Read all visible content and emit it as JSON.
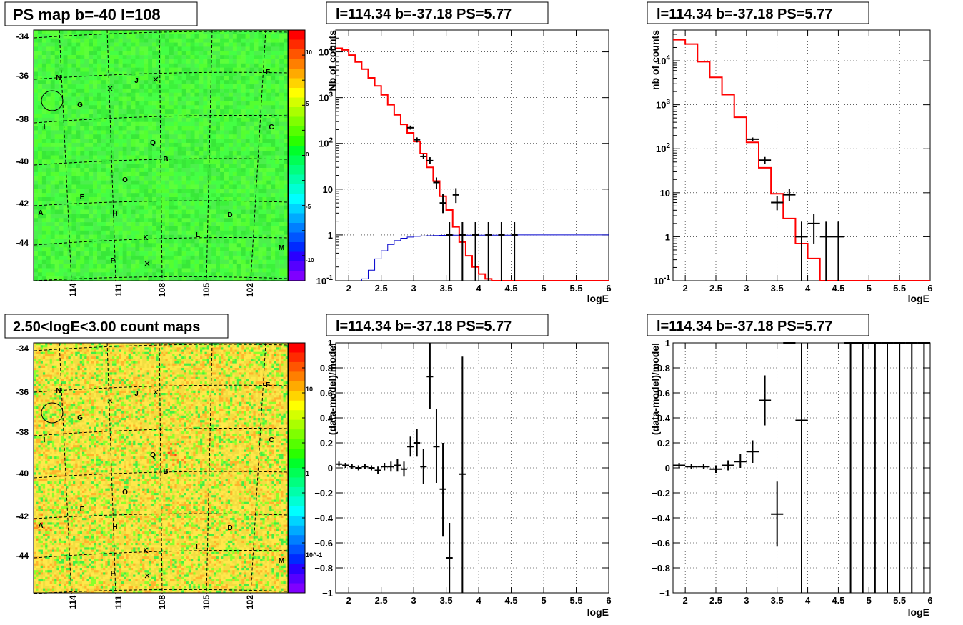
{
  "colors": {
    "model": "#ff0000",
    "acceptance": "#0000cc",
    "data": "#000000",
    "grid": "#000000"
  },
  "panels": {
    "ps_map": {
      "title": "PS map b=-40 l=108",
      "y_ticks": [
        "-34",
        "-36",
        "-38",
        "-40",
        "-42",
        "-44"
      ],
      "x_ticks": [
        "114",
        "111",
        "108",
        "105",
        "102"
      ],
      "colorbar_ticks": [
        "10",
        "5",
        "0",
        "-5",
        "-10"
      ],
      "sources": [
        "N",
        "J",
        "F",
        "G",
        "I",
        "C",
        "Q",
        "B",
        "O",
        "E",
        "A",
        "H",
        "D",
        "K",
        "L",
        "M",
        "P"
      ]
    },
    "count_map": {
      "title": "2.50<logE<3.00 count maps",
      "y_ticks": [
        "-34",
        "-36",
        "-38",
        "-40",
        "-42",
        "-44"
      ],
      "x_ticks": [
        "114",
        "111",
        "108",
        "105",
        "102"
      ],
      "colorbar_ticks": [
        "10",
        "1",
        "10^-1"
      ],
      "sources": [
        "N",
        "J",
        "F",
        "G",
        "I",
        "C",
        "Q",
        "B",
        "O",
        "E",
        "A",
        "H",
        "D",
        "K",
        "L",
        "M",
        "P"
      ]
    },
    "spec1": {
      "title": "l=114.34 b=-37.18 PS=5.77",
      "xlabel": "logE",
      "ylabel": "Nb of counts"
    },
    "spec2": {
      "title": "l=114.34 b=-37.18 PS=5.77",
      "xlabel": "logE",
      "ylabel": "nb of counts"
    },
    "res1": {
      "title": "l=114.34 b=-37.18 PS=5.77",
      "xlabel": "logE",
      "ylabel": "(data-model)/model"
    },
    "res2": {
      "title": "l=114.34 b=-37.18 PS=5.77",
      "xlabel": "logE",
      "ylabel": "(data-model)/model"
    }
  },
  "chart_data": [
    {
      "type": "heatmap",
      "title": "PS map b=-40 l=108",
      "xlim": [
        116,
        100
      ],
      "ylim": [
        -45.8,
        -33.6
      ],
      "colorbar_range": [
        -12,
        12
      ],
      "grid": true
    },
    {
      "type": "line",
      "title": "l=114.34 b=-37.18 PS=5.77",
      "xlabel": "logE",
      "ylabel": "Nb of counts",
      "xlim": [
        1.8,
        6
      ],
      "ylim": [
        0.1,
        30000
      ],
      "yscale": "log",
      "x_ticks": [
        2,
        2.5,
        3,
        3.5,
        4,
        4.5,
        5,
        5.5,
        6
      ],
      "x_tick_labels": [
        "2",
        "2.5",
        "3",
        "3.5",
        "4",
        "4.5",
        "5",
        "5.5",
        "6"
      ],
      "y_ticks": [
        0.1,
        1,
        10,
        100,
        1000,
        10000
      ],
      "y_tick_labels": [
        "10^-1",
        "1",
        "10",
        "10^2",
        "10^3",
        "10^4"
      ],
      "grid": true,
      "model_edges": [
        1.8,
        1.9,
        2.0,
        2.1,
        2.2,
        2.3,
        2.4,
        2.5,
        2.6,
        2.7,
        2.8,
        2.9,
        3.0,
        3.1,
        3.2,
        3.3,
        3.4,
        3.5,
        3.6,
        3.7,
        3.8,
        3.9,
        4.0,
        4.1,
        4.2,
        6.0
      ],
      "model_values": [
        12000,
        11000,
        8500,
        6000,
        4200,
        2700,
        1800,
        1150,
        700,
        420,
        260,
        170,
        110,
        60,
        30,
        15,
        7,
        3.5,
        1.5,
        0.7,
        0.35,
        0.2,
        0.14,
        0.11,
        0.1
      ],
      "acceptance_edges": [
        2.2,
        2.3,
        2.4,
        2.5,
        2.6,
        2.7,
        2.8,
        2.9,
        3.0,
        3.1,
        3.2,
        3.3,
        3.4,
        3.6,
        4.6,
        6.0
      ],
      "acceptance_values": [
        0.11,
        0.17,
        0.3,
        0.45,
        0.62,
        0.75,
        0.85,
        0.9,
        0.93,
        0.95,
        0.96,
        0.97,
        0.98,
        0.99,
        1.0
      ],
      "data_points": [
        {
          "x": 2.95,
          "y": 220,
          "lo": 200,
          "hi": 245,
          "w": 0.05
        },
        {
          "x": 3.05,
          "y": 120,
          "lo": 105,
          "hi": 135,
          "w": 0.05
        },
        {
          "x": 3.15,
          "y": 52,
          "lo": 45,
          "hi": 60,
          "w": 0.05
        },
        {
          "x": 3.25,
          "y": 42,
          "lo": 35,
          "hi": 50,
          "w": 0.05
        },
        {
          "x": 3.35,
          "y": 14,
          "lo": 10,
          "hi": 18,
          "w": 0.05
        },
        {
          "x": 3.45,
          "y": 5,
          "lo": 3,
          "hi": 8,
          "w": 0.05
        },
        {
          "x": 3.65,
          "y": 7.5,
          "lo": 5,
          "hi": 10.5,
          "w": 0.05
        },
        {
          "x": 3.55,
          "y": 1,
          "lo": 0.1,
          "hi": 1.9,
          "w": 0.05
        },
        {
          "x": 3.75,
          "y": 1,
          "lo": 0.1,
          "hi": 1.9,
          "w": 0.05
        },
        {
          "x": 3.95,
          "y": 1,
          "lo": 0.1,
          "hi": 1.9,
          "w": 0.05
        },
        {
          "x": 4.15,
          "y": 1,
          "lo": 0.1,
          "hi": 1.9,
          "w": 0.05
        },
        {
          "x": 4.35,
          "y": 1,
          "lo": 0.1,
          "hi": 1.9,
          "w": 0.05
        },
        {
          "x": 4.55,
          "y": 1,
          "lo": 0.1,
          "hi": 1.9,
          "w": 0.05
        }
      ]
    },
    {
      "type": "line",
      "title": "l=114.34 b=-37.18 PS=5.77",
      "xlabel": "logE",
      "ylabel": "nb of counts",
      "xlim": [
        1.8,
        6
      ],
      "ylim": [
        0.1,
        50000
      ],
      "yscale": "log",
      "x_ticks": [
        2,
        2.5,
        3,
        3.5,
        4,
        4.5,
        5,
        5.5,
        6
      ],
      "x_tick_labels": [
        "2",
        "2.5",
        "3",
        "3.5",
        "4",
        "4.5",
        "5",
        "5.5",
        "6"
      ],
      "y_ticks": [
        0.1,
        1,
        10,
        100,
        1000,
        10000
      ],
      "y_tick_labels": [
        "10^-1",
        "1",
        "10",
        "10^2",
        "10^3",
        "10^4"
      ],
      "grid": true,
      "model_edges": [
        1.8,
        2.0,
        2.2,
        2.4,
        2.6,
        2.8,
        3.0,
        3.2,
        3.4,
        3.6,
        3.8,
        4.0,
        4.2,
        4.4,
        6.0
      ],
      "model_values": [
        30000,
        24000,
        9500,
        4200,
        1700,
        520,
        140,
        37,
        9.5,
        2.6,
        0.7,
        0.32,
        0.1,
        0.1
      ],
      "data_points": [
        {
          "x": 3.1,
          "y": 165,
          "lo": 150,
          "hi": 180,
          "w": 0.1
        },
        {
          "x": 3.3,
          "y": 55,
          "lo": 45,
          "hi": 65,
          "w": 0.1
        },
        {
          "x": 3.5,
          "y": 6,
          "lo": 4,
          "hi": 8.5,
          "w": 0.1
        },
        {
          "x": 3.7,
          "y": 9,
          "lo": 6.5,
          "hi": 12,
          "w": 0.1
        },
        {
          "x": 3.9,
          "y": 1,
          "lo": 0.1,
          "hi": 2.2,
          "w": 0.1
        },
        {
          "x": 4.1,
          "y": 2,
          "lo": 0.7,
          "hi": 3.3,
          "w": 0.1
        },
        {
          "x": 4.3,
          "y": 1,
          "lo": 0.1,
          "hi": 2.2,
          "w": 0.1
        },
        {
          "x": 4.5,
          "y": 1,
          "lo": 0.1,
          "hi": 2.2,
          "w": 0.1
        }
      ]
    },
    {
      "type": "heatmap",
      "title": "2.50<logE<3.00 count maps",
      "xlim": [
        116,
        100
      ],
      "ylim": [
        -45.8,
        -33.6
      ],
      "colorbar_scale": "log",
      "grid": true
    },
    {
      "type": "scatter",
      "title": "l=114.34 b=-37.18 PS=5.77",
      "xlabel": "logE",
      "ylabel": "(data-model)/model",
      "xlim": [
        1.8,
        6
      ],
      "ylim": [
        -1,
        1
      ],
      "x_ticks": [
        2,
        2.5,
        3,
        3.5,
        4,
        4.5,
        5,
        5.5,
        6
      ],
      "x_tick_labels": [
        "2",
        "2.5",
        "3",
        "3.5",
        "4",
        "4.5",
        "5",
        "5.5",
        "6"
      ],
      "y_ticks": [
        -1,
        -0.8,
        -0.6,
        -0.4,
        -0.2,
        0,
        0.2,
        0.4,
        0.6,
        0.8,
        1
      ],
      "y_tick_labels": [
        "−1",
        "−0.8",
        "−0.6",
        "−0.4",
        "−0.2",
        "0",
        "0.2",
        "0.4",
        "0.6",
        "0.8",
        "1"
      ],
      "grid": true,
      "data_points": [
        {
          "x": 1.85,
          "y": 0.03,
          "lo": 0.01,
          "hi": 0.05,
          "w": 0.05
        },
        {
          "x": 1.95,
          "y": 0.02,
          "lo": 0.0,
          "hi": 0.04,
          "w": 0.05
        },
        {
          "x": 2.05,
          "y": 0.01,
          "lo": -0.01,
          "hi": 0.03,
          "w": 0.05
        },
        {
          "x": 2.15,
          "y": 0.0,
          "lo": -0.02,
          "hi": 0.02,
          "w": 0.05
        },
        {
          "x": 2.25,
          "y": 0.01,
          "lo": -0.01,
          "hi": 0.03,
          "w": 0.05
        },
        {
          "x": 2.35,
          "y": 0.0,
          "lo": -0.02,
          "hi": 0.02,
          "w": 0.05
        },
        {
          "x": 2.45,
          "y": -0.02,
          "lo": -0.05,
          "hi": 0.01,
          "w": 0.05
        },
        {
          "x": 2.55,
          "y": 0.01,
          "lo": -0.02,
          "hi": 0.04,
          "w": 0.05
        },
        {
          "x": 2.65,
          "y": 0.01,
          "lo": -0.03,
          "hi": 0.05,
          "w": 0.05
        },
        {
          "x": 2.75,
          "y": 0.02,
          "lo": -0.03,
          "hi": 0.07,
          "w": 0.05
        },
        {
          "x": 2.85,
          "y": -0.01,
          "lo": -0.07,
          "hi": 0.05,
          "w": 0.05
        },
        {
          "x": 2.95,
          "y": 0.17,
          "lo": 0.09,
          "hi": 0.25,
          "w": 0.05
        },
        {
          "x": 3.05,
          "y": 0.2,
          "lo": 0.09,
          "hi": 0.31,
          "w": 0.05
        },
        {
          "x": 3.15,
          "y": 0.01,
          "lo": -0.13,
          "hi": 0.15,
          "w": 0.05
        },
        {
          "x": 3.25,
          "y": 0.73,
          "lo": 0.47,
          "hi": 1.0,
          "w": 0.05
        },
        {
          "x": 3.35,
          "y": 0.17,
          "lo": -0.12,
          "hi": 0.47,
          "w": 0.05
        },
        {
          "x": 3.45,
          "y": -0.17,
          "lo": -0.55,
          "hi": 0.2,
          "w": 0.05
        },
        {
          "x": 3.55,
          "y": -0.72,
          "lo": -1.0,
          "hi": -0.44,
          "w": 0.05
        },
        {
          "x": 3.75,
          "y": -0.05,
          "lo": -1.0,
          "hi": 0.89,
          "w": 0.05
        }
      ]
    },
    {
      "type": "scatter",
      "title": "l=114.34 b=-37.18 PS=5.77",
      "xlabel": "logE",
      "ylabel": "(data-model)/model",
      "xlim": [
        1.8,
        6
      ],
      "ylim": [
        -1,
        1
      ],
      "x_ticks": [
        2,
        2.5,
        3,
        3.5,
        4,
        4.5,
        5,
        5.5,
        6
      ],
      "x_tick_labels": [
        "2",
        "2.5",
        "3",
        "3.5",
        "4",
        "4.5",
        "5",
        "5.5",
        "6"
      ],
      "y_ticks": [
        -1,
        -0.8,
        -0.6,
        -0.4,
        -0.2,
        0,
        0.2,
        0.4,
        0.6,
        0.8,
        1
      ],
      "y_tick_labels": [
        "−1",
        "−0.8",
        "−0.6",
        "−0.4",
        "−0.2",
        "0",
        "0.2",
        "0.4",
        "0.6",
        "0.8",
        "1"
      ],
      "grid": true,
      "data_points": [
        {
          "x": 1.9,
          "y": 0.02,
          "lo": 0.0,
          "hi": 0.04,
          "w": 0.1
        },
        {
          "x": 2.1,
          "y": 0.01,
          "lo": -0.01,
          "hi": 0.03,
          "w": 0.1
        },
        {
          "x": 2.3,
          "y": 0.01,
          "lo": -0.01,
          "hi": 0.03,
          "w": 0.1
        },
        {
          "x": 2.5,
          "y": -0.01,
          "lo": -0.04,
          "hi": 0.02,
          "w": 0.1
        },
        {
          "x": 2.7,
          "y": 0.02,
          "lo": -0.02,
          "hi": 0.06,
          "w": 0.1
        },
        {
          "x": 2.9,
          "y": 0.05,
          "lo": 0.0,
          "hi": 0.11,
          "w": 0.1
        },
        {
          "x": 3.1,
          "y": 0.13,
          "lo": 0.04,
          "hi": 0.22,
          "w": 0.1
        },
        {
          "x": 3.3,
          "y": 0.54,
          "lo": 0.34,
          "hi": 0.74,
          "w": 0.1
        },
        {
          "x": 3.5,
          "y": -0.37,
          "lo": -0.63,
          "hi": -0.11,
          "w": 0.1
        },
        {
          "x": 3.7,
          "y": 1.0,
          "lo": 1.0,
          "hi": 1.0,
          "w": 0.1
        },
        {
          "x": 3.9,
          "y": 0.38,
          "lo": -1.0,
          "hi": 1.0,
          "w": 0.1
        },
        {
          "x": 4.7,
          "y": 1.0,
          "lo": -1.0,
          "hi": 1.0,
          "w": 0.1
        },
        {
          "x": 4.9,
          "y": 1.0,
          "lo": -1.0,
          "hi": 1.0,
          "w": 0.1
        },
        {
          "x": 5.1,
          "y": 1.0,
          "lo": -1.0,
          "hi": 1.0,
          "w": 0.1
        },
        {
          "x": 5.3,
          "y": 1.0,
          "lo": -1.0,
          "hi": 1.0,
          "w": 0.1
        },
        {
          "x": 5.5,
          "y": 1.0,
          "lo": -1.0,
          "hi": 1.0,
          "w": 0.1
        },
        {
          "x": 5.7,
          "y": 1.0,
          "lo": -1.0,
          "hi": 1.0,
          "w": 0.1
        },
        {
          "x": 5.9,
          "y": 1.0,
          "lo": -1.0,
          "hi": 1.0,
          "w": 0.1
        }
      ]
    }
  ]
}
